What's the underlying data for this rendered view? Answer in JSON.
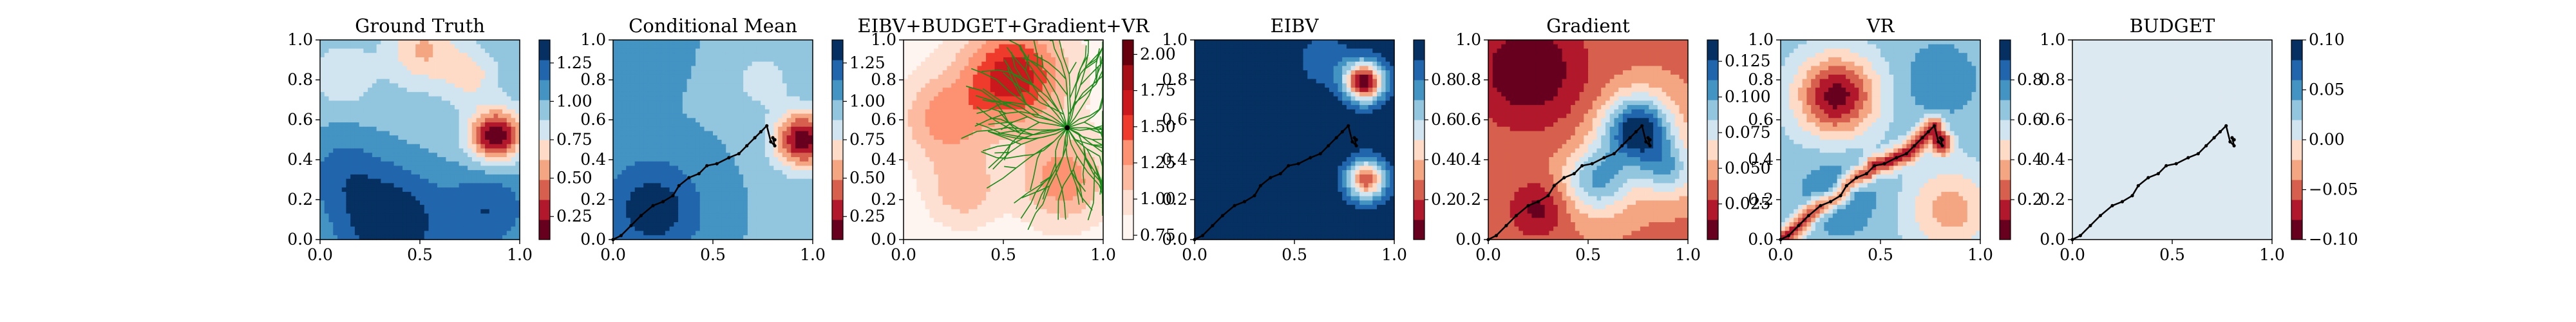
{
  "figure": {
    "background": "#ffffff"
  },
  "palettes": {
    "rdbu": [
      "#67001f",
      "#b2182b",
      "#d6604d",
      "#f4a582",
      "#fddbc7",
      "#f7f7f7",
      "#d1e5f0",
      "#92c5de",
      "#4393c3",
      "#2166ac",
      "#053061"
    ],
    "reds": [
      "#fff5f0",
      "#fee0d2",
      "#fcbba1",
      "#fc9272",
      "#fb6a4a",
      "#ef3b2c",
      "#cb181d",
      "#a50f15",
      "#67000d"
    ],
    "tree_color": "#1a8a1a",
    "path_color": "#000000"
  },
  "chart_data": [
    {
      "type": "heatmap",
      "title": "Ground Truth",
      "xlim": [
        0,
        1
      ],
      "ylim": [
        0,
        1
      ],
      "x_ticks": [
        "0.0",
        "0.5",
        "1.0"
      ],
      "y_ticks": [
        "0.0",
        "0.2",
        "0.4",
        "0.6",
        "0.8",
        "1.0"
      ],
      "colormap": "rdbu",
      "scale": [
        0.1,
        1.4
      ],
      "levels": 10,
      "colorbar_ticks": [
        "0.25",
        "0.50",
        "0.75",
        "1.00",
        "1.25"
      ],
      "colorbar_values": [
        0.25,
        0.5,
        0.75,
        1.0,
        1.25
      ],
      "field": {
        "base": 0.95,
        "blobs": [
          {
            "x": 0.88,
            "y": 0.52,
            "amp": -0.85,
            "s": 0.09
          },
          {
            "x": 0.52,
            "y": 0.95,
            "amp": -0.35,
            "s": 0.12
          },
          {
            "x": 0.75,
            "y": 0.82,
            "amp": -0.25,
            "s": 0.09
          },
          {
            "x": 0.12,
            "y": 0.82,
            "amp": -0.2,
            "s": 0.1
          },
          {
            "x": 0.35,
            "y": 0.08,
            "amp": 0.45,
            "s": 0.2
          },
          {
            "x": 0.85,
            "y": 0.15,
            "amp": 0.3,
            "s": 0.15
          },
          {
            "x": 0.1,
            "y": 0.35,
            "amp": 0.2,
            "s": 0.15
          }
        ]
      },
      "path": false
    },
    {
      "type": "heatmap",
      "title": "Conditional Mean",
      "xlim": [
        0,
        1
      ],
      "ylim": [
        0,
        1
      ],
      "x_ticks": [
        "0.0",
        "0.5",
        "1.0"
      ],
      "y_ticks": [
        "0.0",
        "0.2",
        "0.4",
        "0.6",
        "0.8",
        "1.0"
      ],
      "colormap": "rdbu",
      "scale": [
        0.1,
        1.4
      ],
      "levels": 10,
      "colorbar_ticks": [
        "0.25",
        "0.50",
        "0.75",
        "1.00",
        "1.25"
      ],
      "colorbar_values": [
        0.25,
        0.5,
        0.75,
        1.0,
        1.25
      ],
      "field": {
        "base": 1.0,
        "blobs": [
          {
            "x": 0.95,
            "y": 0.5,
            "amp": -0.85,
            "s": 0.1
          },
          {
            "x": 0.75,
            "y": 0.8,
            "amp": -0.2,
            "s": 0.1
          },
          {
            "x": 0.2,
            "y": 0.15,
            "amp": 0.35,
            "s": 0.18
          },
          {
            "x": 0.0,
            "y": 1.0,
            "amp": 0.1,
            "s": 0.2
          }
        ]
      },
      "path": true
    },
    {
      "type": "heatmap",
      "title": "EIBV+BUDGET+Gradient+VR",
      "xlim": [
        0,
        1
      ],
      "ylim": [
        0,
        1
      ],
      "x_ticks": [
        "0.0",
        "0.5",
        "1.0"
      ],
      "y_ticks": [
        "0.0",
        "0.2",
        "0.4",
        "0.6",
        "0.8",
        "1.0"
      ],
      "colormap": "reds",
      "scale": [
        0.72,
        2.1
      ],
      "levels": 8,
      "colorbar_ticks": [
        "0.75",
        "1.00",
        "1.25",
        "1.50",
        "1.75",
        "2.00"
      ],
      "colorbar_values": [
        0.75,
        1.0,
        1.25,
        1.5,
        1.75,
        2.0
      ],
      "field": {
        "base": 0.8,
        "blobs": [
          {
            "x": 0.55,
            "y": 0.82,
            "amp": 0.9,
            "s": 0.18
          },
          {
            "x": 0.2,
            "y": 0.6,
            "amp": 0.5,
            "s": 0.15
          },
          {
            "x": 0.8,
            "y": 0.3,
            "amp": 0.55,
            "s": 0.15
          },
          {
            "x": 0.3,
            "y": 0.25,
            "amp": 0.4,
            "s": 0.12
          }
        ]
      },
      "tree": {
        "root_x": 0.82,
        "root_y": 0.56
      },
      "path": false
    },
    {
      "type": "heatmap",
      "title": "EIBV",
      "xlim": [
        0,
        1
      ],
      "ylim": [
        0,
        1
      ],
      "x_ticks": [
        "0.0",
        "0.5",
        "1.0"
      ],
      "y_ticks": [
        "0.0",
        "0.2",
        "0.4",
        "0.6",
        "0.8",
        "1.0"
      ],
      "colormap": "rdbu",
      "scale": [
        0.0,
        1.0
      ],
      "levels": 10,
      "colorbar_ticks": [
        "0.2",
        "0.4",
        "0.6",
        "0.8"
      ],
      "colorbar_values": [
        0.2,
        0.4,
        0.6,
        0.8
      ],
      "field": {
        "base": 0.98,
        "blobs": [
          {
            "x": 0.85,
            "y": 0.79,
            "amp": -0.95,
            "s": 0.07
          },
          {
            "x": 0.86,
            "y": 0.3,
            "amp": -0.75,
            "s": 0.07
          },
          {
            "x": 0.65,
            "y": 0.9,
            "amp": -0.15,
            "s": 0.1
          }
        ]
      },
      "path": true
    },
    {
      "type": "heatmap",
      "title": "Gradient",
      "xlim": [
        0,
        1
      ],
      "ylim": [
        0,
        1
      ],
      "x_ticks": [
        "0.0",
        "0.5",
        "1.0"
      ],
      "y_ticks": [
        "0.0",
        "0.2",
        "0.4",
        "0.6",
        "0.8",
        "1.0"
      ],
      "colormap": "rdbu",
      "scale": [
        0.0,
        0.14
      ],
      "levels": 10,
      "colorbar_ticks": [
        "0.025",
        "0.050",
        "0.075",
        "0.100",
        "0.125"
      ],
      "colorbar_values": [
        0.025,
        0.05,
        0.075,
        0.1,
        0.125
      ],
      "field": {
        "base": 0.04,
        "blobs": [
          {
            "x": 0.75,
            "y": 0.55,
            "amp": 0.1,
            "s": 0.12
          },
          {
            "x": 0.55,
            "y": 0.3,
            "amp": 0.06,
            "s": 0.12
          },
          {
            "x": 0.9,
            "y": 0.35,
            "amp": 0.05,
            "s": 0.1
          },
          {
            "x": 0.2,
            "y": 0.85,
            "amp": -0.04,
            "s": 0.2
          },
          {
            "x": 0.25,
            "y": 0.15,
            "amp": -0.03,
            "s": 0.1
          }
        ]
      },
      "path": true
    },
    {
      "type": "heatmap",
      "title": "VR",
      "xlim": [
        0,
        1
      ],
      "ylim": [
        0,
        1
      ],
      "x_ticks": [
        "0.0",
        "0.5",
        "1.0"
      ],
      "y_ticks": [
        "0.0",
        "0.2",
        "0.4",
        "0.6",
        "0.8",
        "1.0"
      ],
      "colormap": "rdbu",
      "scale": [
        0.0,
        1.0
      ],
      "levels": 10,
      "colorbar_ticks": [
        "0.2",
        "0.4",
        "0.6",
        "0.8"
      ],
      "colorbar_values": [
        0.2,
        0.4,
        0.6,
        0.8
      ],
      "field": {
        "base": 0.65,
        "blobs": [
          {
            "x": 0.28,
            "y": 0.72,
            "amp": -0.6,
            "s": 0.14
          },
          {
            "x": 0.85,
            "y": 0.15,
            "amp": -0.3,
            "s": 0.15
          },
          {
            "x": 0.3,
            "y": 0.22,
            "amp": 0.2,
            "s": 0.12
          },
          {
            "x": 0.8,
            "y": 0.8,
            "amp": 0.15,
            "s": 0.12
          }
        ]
      },
      "path_dip": 0.5,
      "path": true
    },
    {
      "type": "heatmap",
      "title": "BUDGET",
      "xlim": [
        0,
        1
      ],
      "ylim": [
        0,
        1
      ],
      "x_ticks": [
        "0.0",
        "0.5",
        "1.0"
      ],
      "y_ticks": [
        "0.0",
        "0.2",
        "0.4",
        "0.6",
        "0.8",
        "1.0"
      ],
      "colormap": "rdbu",
      "scale": [
        -0.1,
        0.1
      ],
      "levels": 10,
      "colorbar_ticks": [
        "−0.10",
        "−0.05",
        "0.00",
        "0.05",
        "0.10"
      ],
      "colorbar_values": [
        -0.1,
        -0.05,
        0.0,
        0.05,
        0.1
      ],
      "field": {
        "base": 0.0,
        "blobs": []
      },
      "flat_color": "#dde9f0",
      "path": true
    }
  ],
  "survey_path": [
    [
      0,
      0
    ],
    [
      0.04,
      0.02
    ],
    [
      0.09,
      0.07
    ],
    [
      0.14,
      0.12
    ],
    [
      0.2,
      0.17
    ],
    [
      0.25,
      0.19
    ],
    [
      0.3,
      0.22
    ],
    [
      0.33,
      0.27
    ],
    [
      0.38,
      0.31
    ],
    [
      0.43,
      0.33
    ],
    [
      0.47,
      0.37
    ],
    [
      0.52,
      0.38
    ],
    [
      0.58,
      0.41
    ],
    [
      0.63,
      0.43
    ],
    [
      0.67,
      0.47
    ],
    [
      0.71,
      0.51
    ],
    [
      0.74,
      0.54
    ],
    [
      0.77,
      0.57
    ],
    [
      0.79,
      0.49
    ],
    [
      0.81,
      0.47
    ],
    [
      0.8,
      0.51
    ],
    [
      0.81,
      0.5
    ],
    [
      0.81,
      0.5
    ]
  ]
}
